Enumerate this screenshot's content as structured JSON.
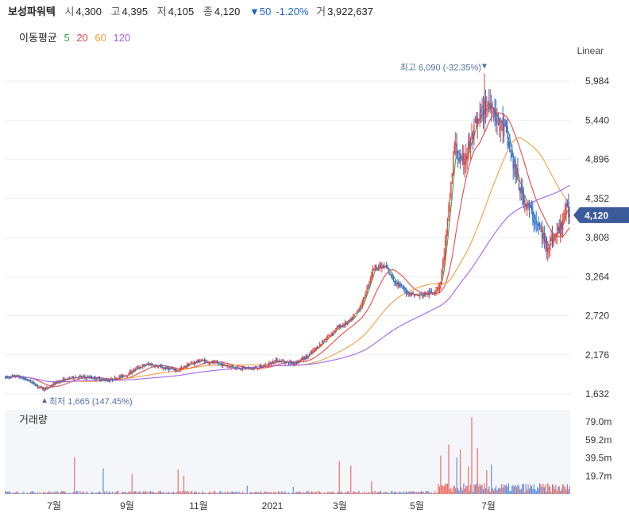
{
  "header": {
    "name": "보성파워텍",
    "open_label": "시",
    "open": "4,300",
    "high_label": "고",
    "high": "4,395",
    "low_label": "저",
    "low": "4,105",
    "close_label": "종",
    "close": "4,120",
    "change": "▼50",
    "change_pct": "-1.20%",
    "volume_label": "거",
    "volume": "3,922,637"
  },
  "ma_legend": {
    "label": "이동평균",
    "items": [
      {
        "period": "5",
        "color": "#3aa655"
      },
      {
        "period": "20",
        "color": "#e84a4a"
      },
      {
        "period": "60",
        "color": "#f0a040"
      },
      {
        "period": "120",
        "color": "#a463f2"
      }
    ]
  },
  "scale_mode": "Linear",
  "colors": {
    "up": "#e8423a",
    "down": "#2c6fd6",
    "current_price_bg": "#3b5a99",
    "annotation": "#5670a8"
  },
  "chart_data": {
    "type": "candlestick",
    "price_axis": {
      "ticks": [
        5984,
        5440,
        4896,
        4352,
        3808,
        3264,
        2720,
        2176,
        1632
      ],
      "tick_labels": [
        "5,984",
        "5,440",
        "4,896",
        "4,352",
        "3,808",
        "3,264",
        "2,720",
        "2,176",
        "1,632"
      ],
      "range": [
        1500,
        6250
      ]
    },
    "volume_axis": {
      "label": "거래량",
      "ticks": [
        79.0,
        59.2,
        39.5,
        19.7
      ],
      "tick_labels": [
        "79.0m",
        "59.2m",
        "39.5m",
        "19.7m"
      ],
      "range": [
        0,
        92
      ]
    },
    "time_axis": [
      "7월",
      "9월",
      "11월",
      "2021",
      "3월",
      "5월",
      "7월"
    ],
    "current_price": {
      "value": 4120,
      "label": "4,120"
    },
    "annotations": {
      "high": {
        "value": 6090,
        "text": "최고 6,090 (-32.35%)"
      },
      "low": {
        "value": 1665,
        "text": "최저 1,665 (147.45%)"
      }
    },
    "trend_anchors": [
      [
        0,
        1860
      ],
      [
        10,
        1880
      ],
      [
        20,
        1820
      ],
      [
        30,
        1720
      ],
      [
        35,
        1700
      ],
      [
        45,
        1800
      ],
      [
        60,
        1870
      ],
      [
        75,
        1860
      ],
      [
        90,
        1820
      ],
      [
        105,
        1900
      ],
      [
        115,
        2000
      ],
      [
        125,
        2050
      ],
      [
        135,
        2000
      ],
      [
        150,
        1960
      ],
      [
        160,
        2050
      ],
      [
        170,
        2100
      ],
      [
        185,
        2050
      ],
      [
        200,
        2000
      ],
      [
        215,
        1980
      ],
      [
        225,
        2020
      ],
      [
        235,
        2100
      ],
      [
        250,
        2060
      ],
      [
        262,
        2150
      ],
      [
        275,
        2350
      ],
      [
        288,
        2550
      ],
      [
        300,
        2650
      ],
      [
        310,
        2900
      ],
      [
        320,
        3400
      ],
      [
        330,
        3400
      ],
      [
        338,
        3200
      ],
      [
        348,
        3050
      ],
      [
        358,
        3000
      ],
      [
        372,
        3050
      ],
      [
        378,
        3200
      ],
      [
        384,
        4000
      ],
      [
        390,
        5100
      ],
      [
        396,
        4800
      ],
      [
        403,
        5100
      ],
      [
        410,
        5400
      ],
      [
        416,
        5600
      ],
      [
        422,
        5700
      ],
      [
        428,
        5400
      ],
      [
        434,
        5300
      ],
      [
        440,
        4900
      ],
      [
        446,
        4500
      ],
      [
        452,
        4300
      ],
      [
        458,
        4100
      ],
      [
        464,
        3900
      ],
      [
        470,
        3700
      ],
      [
        476,
        3800
      ],
      [
        482,
        3950
      ],
      [
        486,
        4200
      ],
      [
        490,
        4120
      ]
    ],
    "ma_periods": [
      5,
      20,
      60,
      120
    ],
    "volume_spikes": [
      [
        60,
        40
      ],
      [
        85,
        28
      ],
      [
        110,
        22
      ],
      [
        150,
        27
      ],
      [
        155,
        20
      ],
      [
        210,
        9
      ],
      [
        250,
        8
      ],
      [
        290,
        36
      ],
      [
        300,
        31
      ],
      [
        318,
        14
      ],
      [
        378,
        42
      ],
      [
        385,
        54
      ],
      [
        392,
        40
      ],
      [
        395,
        49
      ],
      [
        402,
        30
      ],
      [
        405,
        84
      ],
      [
        410,
        50
      ],
      [
        418,
        26
      ],
      [
        422,
        32
      ]
    ]
  }
}
